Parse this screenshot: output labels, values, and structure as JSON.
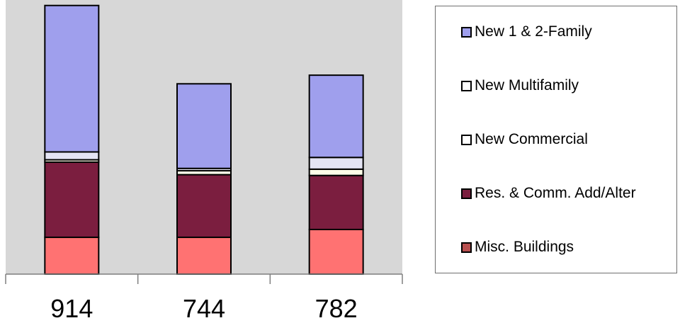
{
  "chart_data": {
    "type": "bar",
    "stacked": true,
    "categories": [
      "914",
      "744",
      "782"
    ],
    "series": [
      {
        "name": "Misc. Buildings",
        "color": "#ff7272",
        "values": [
          47,
          47,
          57
        ]
      },
      {
        "name": "Res. & Comm. Add/Alter",
        "color": "#7b1e3f",
        "values": [
          96,
          80,
          69
        ]
      },
      {
        "name": "New Commercial",
        "color": "#fdfde8",
        "values": [
          3,
          5,
          8
        ]
      },
      {
        "name": "New Multifamily",
        "color": "#e4e4f4",
        "values": [
          10,
          3,
          15
        ]
      },
      {
        "name": "New 1 & 2-Family",
        "color": "#9f9fed",
        "values": [
          187,
          108,
          105
        ]
      }
    ],
    "ylim": [
      0,
      350
    ],
    "grid": false,
    "legend_position": "right"
  },
  "legend": [
    {
      "label": "New 1 & 2-Family",
      "color": "#9f9fed"
    },
    {
      "label": "New Multifamily",
      "color": "#ffffff"
    },
    {
      "label": "New Commercial",
      "color": "#ffffff"
    },
    {
      "label": "Res. & Comm. Add/Alter",
      "color": "#7b1e3f"
    },
    {
      "label": "Misc. Buildings",
      "color": "#b85050"
    }
  ]
}
